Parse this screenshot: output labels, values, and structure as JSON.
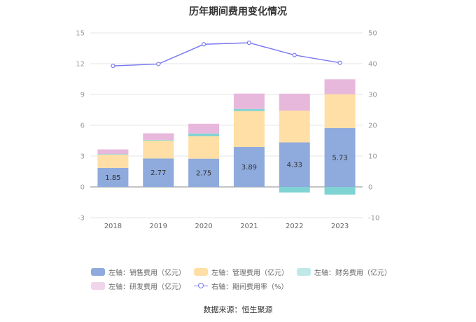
{
  "chart_data": {
    "type": "bar",
    "title": "历年期间费用变化情况",
    "categories": [
      "2018",
      "2019",
      "2020",
      "2021",
      "2022",
      "2023"
    ],
    "left_axis": {
      "ylim": [
        -3,
        15
      ],
      "ticks": [
        "-3",
        "0",
        "3",
        "6",
        "9",
        "12",
        "15"
      ]
    },
    "right_axis": {
      "ylim": [
        -10,
        50
      ],
      "ticks": [
        "-10",
        "0",
        "10",
        "20",
        "30",
        "40",
        "50"
      ]
    },
    "series": [
      {
        "name": "左轴：销售费用（亿元）",
        "axis": "left",
        "color": "#8faadc",
        "values": [
          1.85,
          2.77,
          2.75,
          3.89,
          4.33,
          5.73
        ],
        "labels": [
          "1.85",
          "2.77",
          "2.75",
          "3.89",
          "4.33",
          "5.73"
        ]
      },
      {
        "name": "左轴：管理费用（亿元）",
        "axis": "left",
        "color": "#ffdfa5",
        "values": [
          1.3,
          1.75,
          2.2,
          3.5,
          3.1,
          3.3
        ]
      },
      {
        "name": "左轴：财务费用（亿元）",
        "axis": "left",
        "color": "#7fd3d3",
        "values": [
          0.05,
          0.05,
          0.25,
          0.2,
          -0.55,
          -0.75
        ]
      },
      {
        "name": "左轴：研发费用（亿元）",
        "axis": "left",
        "color": "#e8b8dc",
        "values": [
          0.45,
          0.65,
          0.95,
          1.5,
          1.65,
          1.45
        ]
      },
      {
        "name": "右轴：期间费用率（%）",
        "axis": "right",
        "type": "line",
        "color": "#7a7af0",
        "values": [
          39.3,
          39.9,
          46.3,
          46.8,
          42.8,
          40.3
        ]
      }
    ],
    "grid": true,
    "legend_position": "bottom"
  },
  "footer": {
    "source": "数据来源：恒生聚源"
  }
}
